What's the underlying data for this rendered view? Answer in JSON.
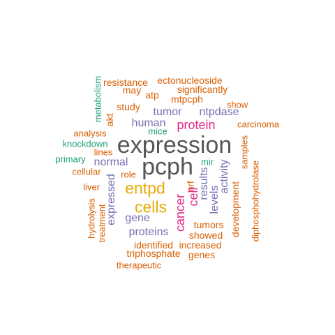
{
  "colors": {
    "gray": "#555555",
    "orange": "#d95f02",
    "purple": "#7570b3",
    "magenta": "#e7298a",
    "teal": "#1b9e77",
    "gold": "#e6ab02"
  },
  "wordcloud": {
    "words": [
      {
        "id": "expression",
        "text": "expression",
        "color": "gray"
      },
      {
        "id": "pcph",
        "text": "pcph",
        "color": "gray"
      },
      {
        "id": "entpd",
        "text": "entpd",
        "color": "gold"
      },
      {
        "id": "cells",
        "text": "cells",
        "color": "gold"
      },
      {
        "id": "protein",
        "text": "protein",
        "color": "magenta"
      },
      {
        "id": "cancer",
        "text": "cancer",
        "color": "magenta"
      },
      {
        "id": "cell",
        "text": "cell",
        "color": "magenta"
      },
      {
        "id": "tumor",
        "text": "tumor",
        "color": "purple"
      },
      {
        "id": "human",
        "text": "human",
        "color": "purple"
      },
      {
        "id": "ntpdase",
        "text": "ntpdase",
        "color": "purple"
      },
      {
        "id": "normal",
        "text": "normal",
        "color": "purple"
      },
      {
        "id": "expressed",
        "text": "expressed",
        "color": "purple"
      },
      {
        "id": "gene",
        "text": "gene",
        "color": "purple"
      },
      {
        "id": "proteins",
        "text": "proteins",
        "color": "purple"
      },
      {
        "id": "results",
        "text": "results",
        "color": "purple"
      },
      {
        "id": "levels",
        "text": "levels",
        "color": "purple"
      },
      {
        "id": "activity",
        "text": "activity",
        "color": "purple"
      },
      {
        "id": "ectonucleoside",
        "text": "ectonucleoside",
        "color": "orange"
      },
      {
        "id": "resistance",
        "text": "resistance",
        "color": "orange"
      },
      {
        "id": "may",
        "text": "may",
        "color": "orange"
      },
      {
        "id": "significantly",
        "text": "significantly",
        "color": "orange"
      },
      {
        "id": "atp",
        "text": "atp",
        "color": "orange"
      },
      {
        "id": "mtpcph",
        "text": "mtpcph",
        "color": "orange"
      },
      {
        "id": "study",
        "text": "study",
        "color": "orange"
      },
      {
        "id": "show",
        "text": "show",
        "color": "orange"
      },
      {
        "id": "akt",
        "text": "akt",
        "color": "orange"
      },
      {
        "id": "carcinoma",
        "text": "carcinoma",
        "color": "orange"
      },
      {
        "id": "analysis",
        "text": "analysis",
        "color": "orange"
      },
      {
        "id": "lines",
        "text": "lines",
        "color": "orange"
      },
      {
        "id": "samples",
        "text": "samples",
        "color": "orange"
      },
      {
        "id": "cellular",
        "text": "cellular",
        "color": "orange"
      },
      {
        "id": "role",
        "text": "role",
        "color": "orange"
      },
      {
        "id": "liver",
        "text": "liver",
        "color": "orange"
      },
      {
        "id": "nrf",
        "text": "nrf",
        "color": "orange"
      },
      {
        "id": "development",
        "text": "development",
        "color": "orange"
      },
      {
        "id": "diphosphohydrolase",
        "text": "diphosphohydrolase",
        "color": "orange"
      },
      {
        "id": "hydrolysis",
        "text": "hydrolysis",
        "color": "orange"
      },
      {
        "id": "treatment",
        "text": "treatment",
        "color": "orange"
      },
      {
        "id": "tumors",
        "text": "tumors",
        "color": "orange"
      },
      {
        "id": "showed",
        "text": "showed",
        "color": "orange"
      },
      {
        "id": "identified",
        "text": "identified",
        "color": "orange"
      },
      {
        "id": "increased",
        "text": "increased",
        "color": "orange"
      },
      {
        "id": "triphosphate",
        "text": "triphosphate",
        "color": "orange"
      },
      {
        "id": "genes",
        "text": "genes",
        "color": "orange"
      },
      {
        "id": "therapeutic",
        "text": "therapeutic",
        "color": "orange"
      },
      {
        "id": "metabolism",
        "text": "metabolism",
        "color": "teal"
      },
      {
        "id": "mice",
        "text": "mice",
        "color": "teal"
      },
      {
        "id": "knockdown",
        "text": "knockdown",
        "color": "teal"
      },
      {
        "id": "primary",
        "text": "primary",
        "color": "teal"
      },
      {
        "id": "mir",
        "text": "mir",
        "color": "teal"
      }
    ]
  }
}
